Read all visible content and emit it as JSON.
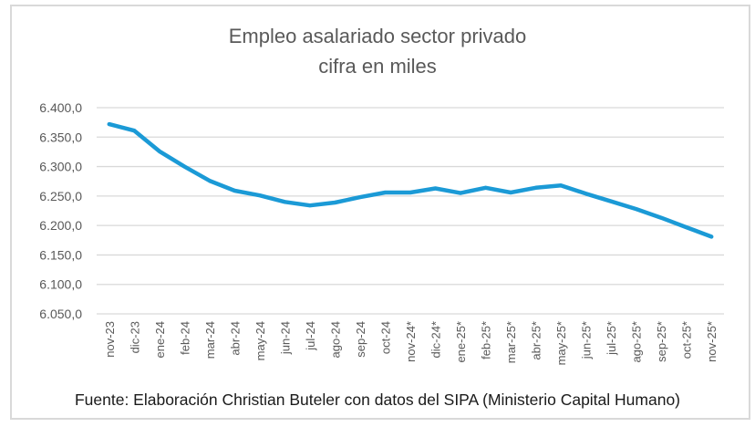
{
  "chart_data": {
    "type": "line",
    "title": "Empleo asalariado sector privado",
    "subtitle": "cifra en miles",
    "xlabel": "",
    "ylabel": "",
    "ylim": [
      6050,
      6400
    ],
    "yticks": [
      6050,
      6100,
      6150,
      6200,
      6250,
      6300,
      6350,
      6400
    ],
    "ytick_labels": [
      "6.050,0",
      "6.100,0",
      "6.150,0",
      "6.200,0",
      "6.250,0",
      "6.300,0",
      "6.350,0",
      "6.400,0"
    ],
    "grid": true,
    "legend": "none",
    "line_color": "#1b9ad6",
    "categories": [
      "nov-23",
      "dic-23",
      "ene-24",
      "feb-24",
      "mar-24",
      "abr-24",
      "may-24",
      "jun-24",
      "jul-24",
      "ago-24",
      "sep-24",
      "oct-24",
      "nov-24*",
      "dic-24*",
      "ene-25*",
      "feb-25*",
      "mar-25*",
      "abr-25*",
      "may-25*",
      "jun-25*",
      "jul-25*",
      "ago-25*",
      "sep-25*",
      "oct-25*",
      "nov-25*"
    ],
    "series": [
      {
        "name": "Empleo asalariado sector privado",
        "values": [
          6372,
          6361,
          6326,
          6300,
          6276,
          6259,
          6251,
          6240,
          6234,
          6239,
          6248,
          6256,
          6256,
          6263,
          6255,
          6264,
          6256,
          6264,
          6268,
          6254,
          6241,
          6228,
          6213,
          6197,
          6181
        ]
      }
    ],
    "source": "Fuente: Elaboración Christian Buteler con datos del SIPA (Ministerio Capital Humano)"
  }
}
